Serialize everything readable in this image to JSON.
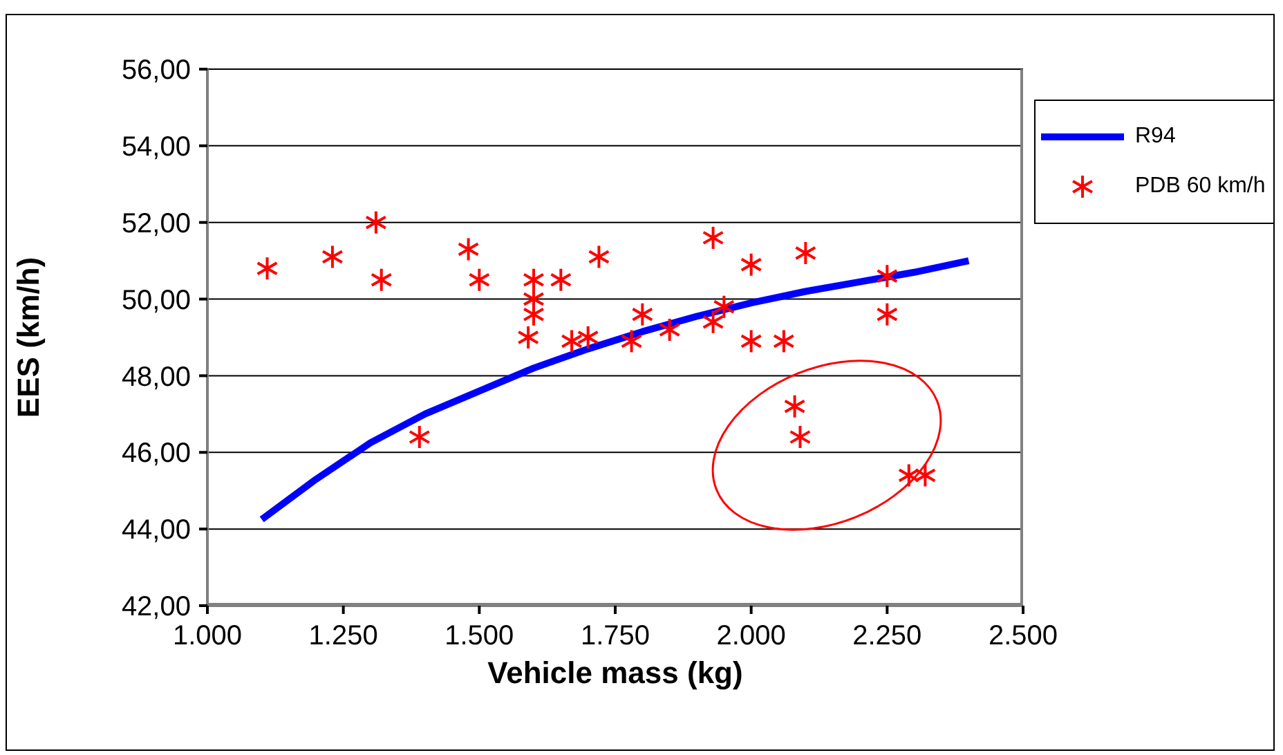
{
  "chart_data": {
    "type": "scatter",
    "xlabel": "Vehicle mass (kg)",
    "ylabel": "EES (km/h)",
    "xlim": [
      1000,
      2500
    ],
    "xticks": [
      {
        "value": 1000,
        "label": "1.000"
      },
      {
        "value": 1250,
        "label": "1.250"
      },
      {
        "value": 1500,
        "label": "1.500"
      },
      {
        "value": 1750,
        "label": "1.750"
      },
      {
        "value": 2000,
        "label": "2.000"
      },
      {
        "value": 2250,
        "label": "2.250"
      },
      {
        "value": 2500,
        "label": "2.500"
      }
    ],
    "ylim": [
      42,
      56
    ],
    "yticks": [
      {
        "value": 42,
        "label": "42,00"
      },
      {
        "value": 44,
        "label": "44,00"
      },
      {
        "value": 46,
        "label": "46,00"
      },
      {
        "value": 48,
        "label": "48,00"
      },
      {
        "value": 50,
        "label": "50,00"
      },
      {
        "value": 52,
        "label": "52,00"
      },
      {
        "value": 54,
        "label": "54,00"
      },
      {
        "value": 56,
        "label": "56,00"
      }
    ],
    "grid": "y",
    "legend": "right",
    "series": [
      {
        "name": "R94",
        "type": "line",
        "color": "#0000ff",
        "marker": "none",
        "line_style": "solid",
        "x": [
          1100,
          1200,
          1300,
          1400,
          1500,
          1600,
          1700,
          1800,
          1900,
          2000,
          2100,
          2200,
          2300,
          2400
        ],
        "values": [
          44.25,
          45.3,
          46.25,
          47.0,
          47.6,
          48.2,
          48.7,
          49.15,
          49.55,
          49.9,
          50.2,
          50.45,
          50.7,
          51.0
        ]
      },
      {
        "name": "PDB 60 km/h",
        "type": "scatter",
        "color": "#ff0000",
        "marker": "cross",
        "x": [
          1110,
          1230,
          1310,
          1320,
          1390,
          1480,
          1500,
          1600,
          1650,
          1720,
          1600,
          1600,
          1590,
          1670,
          1700,
          1780,
          1800,
          1850,
          1930,
          1930,
          1950,
          2000,
          2000,
          2060,
          2080,
          2090,
          2100,
          2250,
          2250,
          2290,
          2320
        ],
        "values": [
          50.8,
          51.1,
          52.0,
          50.5,
          46.4,
          51.3,
          50.5,
          50.5,
          50.5,
          51.1,
          49.6,
          50.0,
          49.0,
          48.9,
          49.0,
          48.9,
          49.6,
          49.2,
          51.6,
          49.4,
          49.8,
          50.9,
          48.9,
          48.9,
          47.2,
          46.4,
          51.2,
          50.6,
          49.6,
          45.4,
          45.4
        ]
      }
    ]
  }
}
